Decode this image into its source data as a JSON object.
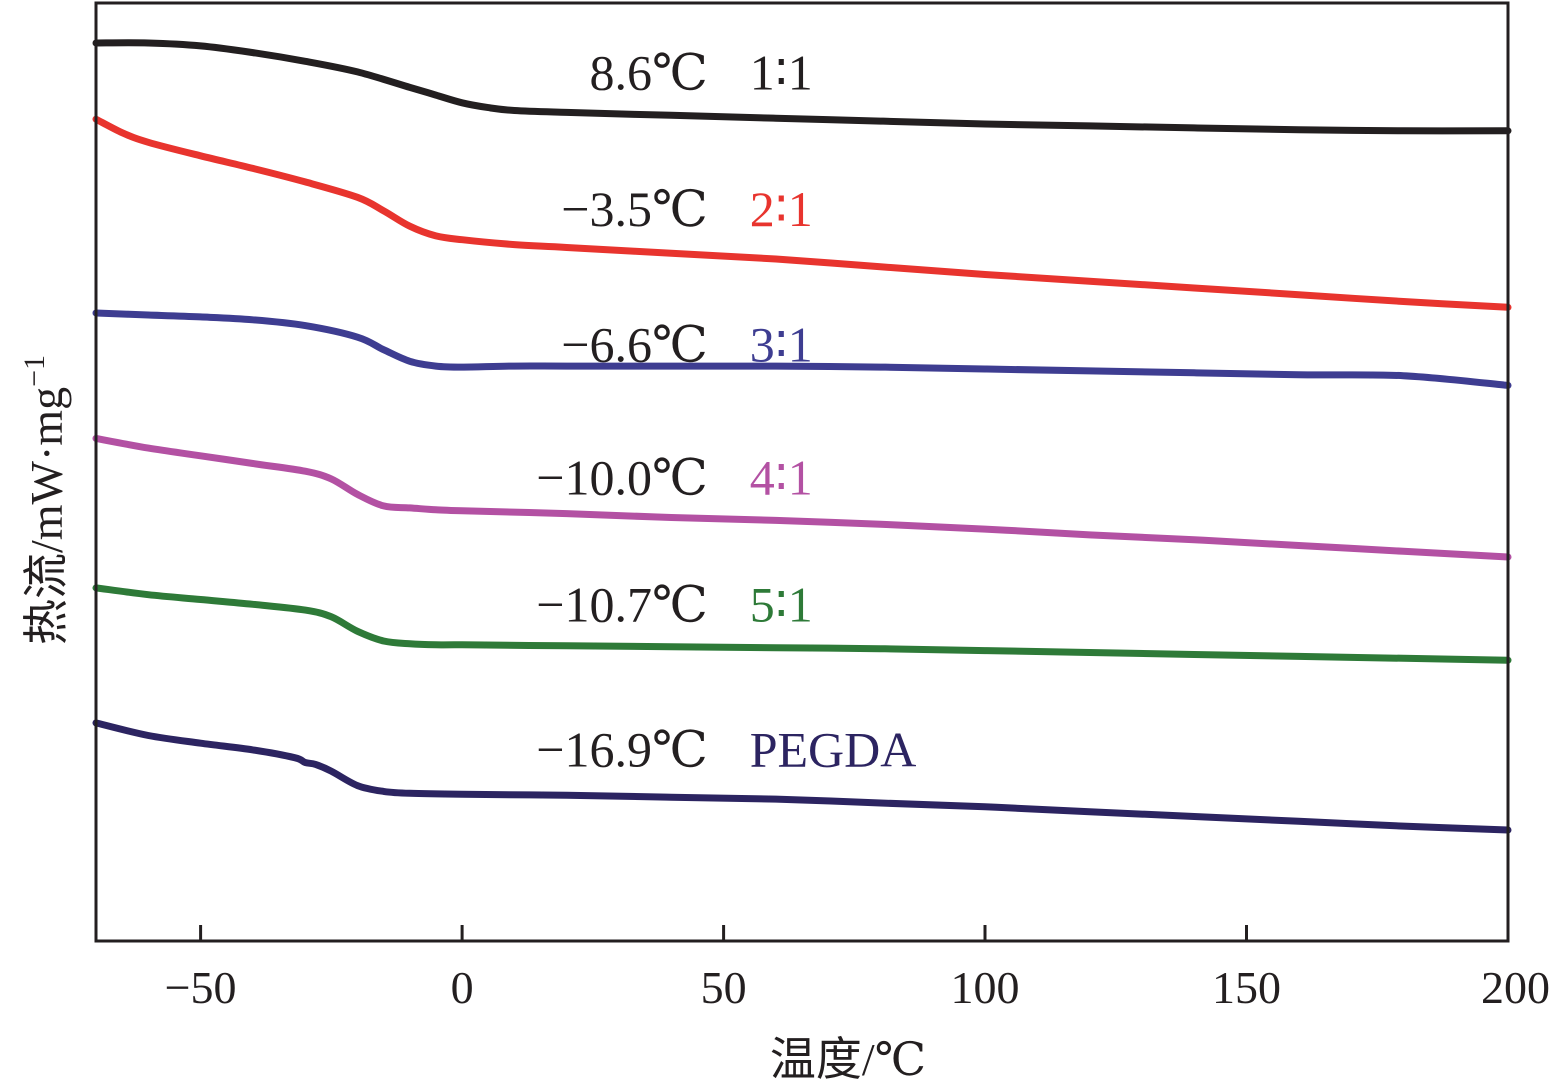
{
  "chart_data": {
    "type": "line",
    "title": "",
    "xlabel": "温度/℃",
    "ylabel": "热流/mW·mg",
    "ylabel_exponent": "−1",
    "xlim": [
      -70,
      200
    ],
    "ylim": [
      -0.5,
      8.5
    ],
    "xticks": [
      -50,
      0,
      50,
      100,
      150,
      200
    ],
    "xtick_labels": [
      "−50",
      "0",
      "50",
      "100",
      "150",
      "200"
    ],
    "y_ticks_shown": false,
    "grid": false,
    "series": [
      {
        "name": "1∶1",
        "color": "#231f20",
        "tg_label": "8.6℃",
        "x": [
          -70,
          -60,
          -50,
          -40,
          -30,
          -20,
          -10,
          -5,
          0,
          5,
          10,
          20,
          40,
          60,
          80,
          100,
          120,
          140,
          160,
          180,
          200
        ],
        "y": [
          8.5,
          8.5,
          8.47,
          8.4,
          8.31,
          8.2,
          8.04,
          7.96,
          7.88,
          7.83,
          7.8,
          7.78,
          7.75,
          7.72,
          7.69,
          7.66,
          7.64,
          7.62,
          7.6,
          7.59,
          7.59
        ]
      },
      {
        "name": "2∶1",
        "color": "#e8342e",
        "tg_label": "−3.5℃",
        "x": [
          -70,
          -65,
          -60,
          -50,
          -40,
          -30,
          -20,
          -15,
          -10,
          -5,
          0,
          10,
          20,
          40,
          60,
          80,
          100,
          120,
          140,
          160,
          180,
          200
        ],
        "y": [
          7.71,
          7.57,
          7.47,
          7.33,
          7.2,
          7.06,
          6.9,
          6.76,
          6.6,
          6.5,
          6.46,
          6.41,
          6.38,
          6.32,
          6.26,
          6.18,
          6.1,
          6.03,
          5.96,
          5.89,
          5.82,
          5.76
        ]
      },
      {
        "name": "3∶1",
        "color": "#3e3d91",
        "tg_label": "−6.6℃",
        "x": [
          -70,
          -60,
          -50,
          -40,
          -30,
          -20,
          -15,
          -10,
          -5,
          0,
          10,
          20,
          40,
          60,
          80,
          100,
          120,
          140,
          160,
          180,
          200
        ],
        "y": [
          5.7,
          5.68,
          5.66,
          5.63,
          5.57,
          5.45,
          5.32,
          5.2,
          5.15,
          5.14,
          5.15,
          5.15,
          5.15,
          5.15,
          5.14,
          5.12,
          5.1,
          5.08,
          5.06,
          5.05,
          4.95
        ]
      },
      {
        "name": "4∶1",
        "color": "#b351a3",
        "tg_label": "−10.0℃",
        "x": [
          -70,
          -60,
          -50,
          -40,
          -30,
          -25,
          -20,
          -15,
          -10,
          -5,
          0,
          20,
          40,
          60,
          80,
          100,
          120,
          140,
          160,
          180,
          200
        ],
        "y": [
          4.4,
          4.3,
          4.22,
          4.14,
          4.06,
          3.98,
          3.82,
          3.7,
          3.68,
          3.66,
          3.65,
          3.62,
          3.58,
          3.55,
          3.51,
          3.46,
          3.4,
          3.35,
          3.29,
          3.23,
          3.17
        ]
      },
      {
        "name": "5∶1",
        "color": "#2e7a38",
        "tg_label": "−10.7℃",
        "x": [
          -70,
          -60,
          -50,
          -40,
          -30,
          -25,
          -20,
          -15,
          -10,
          -5,
          0,
          20,
          40,
          60,
          80,
          100,
          120,
          140,
          160,
          180,
          200
        ],
        "y": [
          2.85,
          2.78,
          2.73,
          2.68,
          2.62,
          2.55,
          2.4,
          2.3,
          2.27,
          2.26,
          2.26,
          2.25,
          2.24,
          2.23,
          2.22,
          2.2,
          2.18,
          2.16,
          2.14,
          2.12,
          2.1
        ]
      },
      {
        "name": "PEGDA",
        "color": "#2c2461",
        "tg_label": "−16.9℃",
        "x": [
          -70,
          -60,
          -50,
          -40,
          -32,
          -30,
          -28,
          -25,
          -20,
          -15,
          -10,
          0,
          20,
          40,
          60,
          80,
          100,
          120,
          140,
          160,
          180,
          200
        ],
        "y": [
          1.45,
          1.32,
          1.24,
          1.17,
          1.09,
          1.04,
          1.02,
          0.95,
          0.8,
          0.74,
          0.72,
          0.71,
          0.7,
          0.68,
          0.66,
          0.62,
          0.58,
          0.53,
          0.48,
          0.43,
          0.38,
          0.34
        ]
      }
    ],
    "annotations": [
      {
        "series": "1∶1",
        "tg_text": "8.6℃",
        "ratio_text": "1∶1",
        "color": "#231f20",
        "at_y": 8.02
      },
      {
        "series": "2∶1",
        "tg_text": "−3.5℃",
        "ratio_text": "2∶1",
        "color": "#e8342e",
        "at_y": 6.6
      },
      {
        "series": "3∶1",
        "tg_text": "−6.6℃",
        "ratio_text": "3∶1",
        "color": "#3e3d91",
        "at_y": 5.2
      },
      {
        "series": "4∶1",
        "tg_text": "−10.0℃",
        "ratio_text": "4∶1",
        "color": "#b351a3",
        "at_y": 3.82
      },
      {
        "series": "5∶1",
        "tg_text": "−10.7℃",
        "ratio_text": "5∶1",
        "color": "#2e7a38",
        "at_y": 2.5
      },
      {
        "series": "PEGDA",
        "tg_text": "−16.9℃",
        "ratio_text": "PEGDA",
        "color": "#2c2461",
        "at_y": 1.0
      }
    ],
    "annotation_x": {
      "tg_right": 47,
      "ratio_left": 55
    }
  }
}
